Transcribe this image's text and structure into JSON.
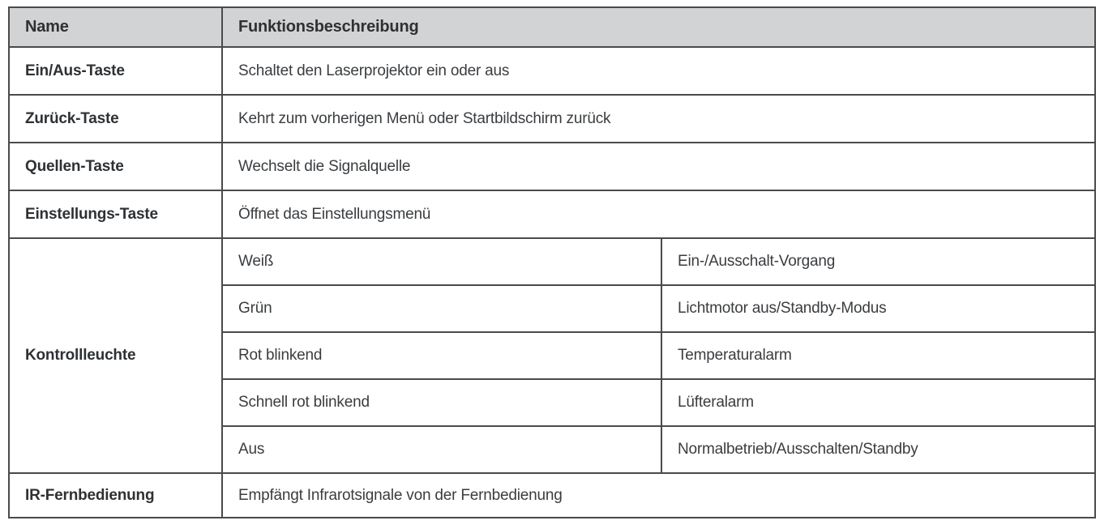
{
  "table": {
    "header": {
      "name_label": "Name",
      "description_label": "Funktionsbeschreibung"
    },
    "rows": [
      {
        "name": "Ein/Aus-Taste",
        "description": "Schaltet den Laserprojektor ein oder aus"
      },
      {
        "name": "Zurück-Taste",
        "description": "Kehrt zum vorherigen Menü oder Startbildschirm zurück"
      },
      {
        "name": "Quellen-Taste",
        "description": "Wechselt die Signalquelle"
      },
      {
        "name": "Einstellungs-Taste",
        "description": "Öffnet das Einstellungsmenü"
      },
      {
        "name": "Kontrollleuchte",
        "states": [
          {
            "state": "Weiß",
            "meaning": "Ein-/Ausschalt-Vorgang"
          },
          {
            "state": "Grün",
            "meaning": "Lichtmotor aus/Standby-Modus"
          },
          {
            "state": "Rot blinkend",
            "meaning": "Temperaturalarm"
          },
          {
            "state": "Schnell rot blinkend",
            "meaning": "Lüfteralarm"
          },
          {
            "state": "Aus",
            "meaning": "Normalbetrieb/Ausschalten/Standby"
          }
        ]
      },
      {
        "name": "IR-Fernbedienung",
        "description": "Empfängt Infrarotsignale von der Fernbedienung"
      }
    ],
    "colors": {
      "header_background": "#d2d3d4",
      "border": "#4a4a4a",
      "text": "#333639"
    }
  }
}
